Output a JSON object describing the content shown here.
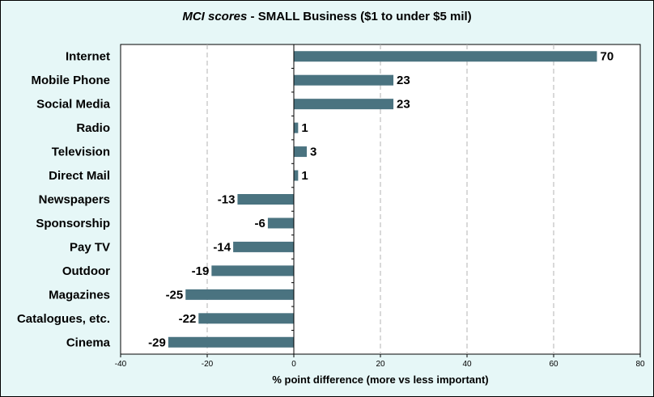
{
  "chart_data": {
    "type": "bar",
    "orientation": "horizontal",
    "title_italic": "MCI scores",
    "title_rest": " - SMALL Business ($1 to under $5 mil)",
    "categories": [
      "Internet",
      "Mobile Phone",
      "Social Media",
      "Radio",
      "Television",
      "Direct Mail",
      "Newspapers",
      "Sponsorship",
      "Pay TV",
      "Outdoor",
      "Magazines",
      "Catalogues, etc.",
      "Cinema"
    ],
    "values": [
      70,
      23,
      23,
      1,
      3,
      1,
      -13,
      -6,
      -14,
      -19,
      -25,
      -22,
      -29
    ],
    "value_labels": [
      "70",
      "23",
      "23",
      "1",
      "3",
      "1",
      "-13",
      "-6",
      "-14",
      "-19",
      "-25",
      "-22",
      "-29"
    ],
    "xlabel": "% point difference (more vs less important)",
    "ylabel": "",
    "xlim": [
      -40,
      80
    ],
    "xticks": [
      -40,
      -20,
      0,
      20,
      40,
      60,
      80
    ],
    "grid": "vertical dashed",
    "legend": "none",
    "colors": {
      "plot_bg": "#ffffff",
      "frame_bg": "#e6f7f7",
      "bar": "#4a7380",
      "grid": "#b3b3b3"
    }
  }
}
